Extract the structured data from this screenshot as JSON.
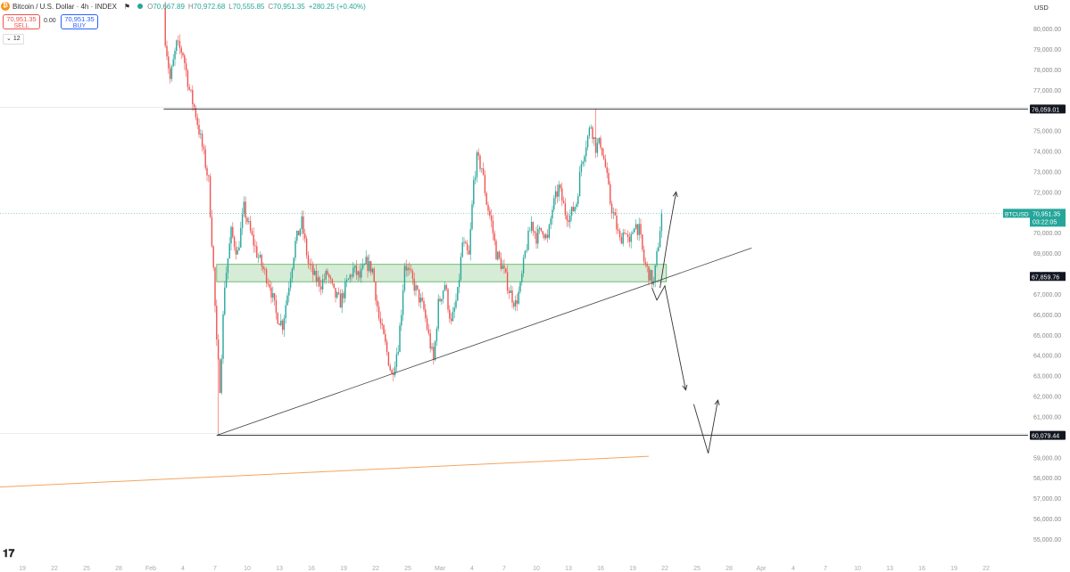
{
  "header": {
    "symbol": "Bitcoin / U.S. Dollar · 4h · INDEX",
    "open": "70,667.89",
    "high": "70,972.68",
    "low": "70,555.85",
    "close": "70,951.35",
    "change": "+280.25 (+0.40%)",
    "open_key": "O",
    "high_key": "H",
    "low_key": "L",
    "close_key": "C"
  },
  "trade": {
    "sell_price": "70,951.35",
    "sell_label": "SELL",
    "buy_price": "70,951.35",
    "buy_label": "BUY",
    "spread": "0.00",
    "indicator_count": "12"
  },
  "currency": "USD",
  "colors": {
    "up": "#26a69a",
    "down": "#ef5350",
    "zone_fill": "#c8e6c9",
    "zone_border": "#4caf50",
    "ma_line": "#f4a460",
    "price_tag": "#26a69a"
  },
  "chart_data": {
    "type": "candlestick",
    "ylim": [
      54000,
      81000
    ],
    "y_ticks": [
      55000,
      56000,
      57000,
      58000,
      59000,
      60000,
      61000,
      62000,
      63000,
      64000,
      65000,
      66000,
      67000,
      68000,
      69000,
      70000,
      71000,
      72000,
      73000,
      74000,
      75000,
      76000,
      77000,
      78000,
      79000,
      80000
    ],
    "y_tick_labels": [
      "55,000.00",
      "56,000.00",
      "57,000.00",
      "58,000.00",
      "59,000.00",
      "60,000.00",
      "61,000.00",
      "62,000.00",
      "63,000.00",
      "64,000.00",
      "65,000.00",
      "66,000.00",
      "67,000.00",
      "68,000.00",
      "69,000.00",
      "70,000.00",
      "71,000.00",
      "72,000.00",
      "73,000.00",
      "74,000.00",
      "75,000.00",
      "76,000.00",
      "77,000.00",
      "78,000.00",
      "79,000.00",
      "80,000.00"
    ],
    "x_ticks": [
      {
        "bar": 0,
        "label": "19"
      },
      {
        "bar": 20,
        "label": "22"
      },
      {
        "bar": 40,
        "label": "25"
      },
      {
        "bar": 60,
        "label": "28"
      },
      {
        "bar": 80,
        "label": "Feb"
      },
      {
        "bar": 100,
        "label": "4"
      },
      {
        "bar": 120,
        "label": "7"
      },
      {
        "bar": 140,
        "label": "10"
      },
      {
        "bar": 160,
        "label": "13"
      },
      {
        "bar": 180,
        "label": "16"
      },
      {
        "bar": 200,
        "label": "19"
      },
      {
        "bar": 220,
        "label": "22"
      },
      {
        "bar": 240,
        "label": "25"
      },
      {
        "bar": 260,
        "label": "Mar"
      },
      {
        "bar": 280,
        "label": "4"
      },
      {
        "bar": 300,
        "label": "7"
      },
      {
        "bar": 320,
        "label": "10"
      },
      {
        "bar": 340,
        "label": "13"
      },
      {
        "bar": 360,
        "label": "16"
      },
      {
        "bar": 380,
        "label": "19"
      },
      {
        "bar": 400,
        "label": "22"
      },
      {
        "bar": 420,
        "label": "25"
      },
      {
        "bar": 440,
        "label": "28"
      },
      {
        "bar": 460,
        "label": "Apr"
      },
      {
        "bar": 480,
        "label": "4"
      },
      {
        "bar": 500,
        "label": "7"
      },
      {
        "bar": 520,
        "label": "10"
      },
      {
        "bar": 540,
        "label": "13"
      },
      {
        "bar": 560,
        "label": "16"
      },
      {
        "bar": 580,
        "label": "19"
      },
      {
        "bar": 600,
        "label": "22"
      }
    ],
    "price_anchors": [
      [
        88,
        81000
      ],
      [
        89,
        79500
      ],
      [
        92,
        77500
      ],
      [
        96,
        79200
      ],
      [
        100,
        78800
      ],
      [
        104,
        77000
      ],
      [
        108,
        75800
      ],
      [
        112,
        74200
      ],
      [
        116,
        72500
      ],
      [
        119,
        68200
      ],
      [
        121,
        64500
      ],
      [
        123,
        62500
      ],
      [
        126,
        67500
      ],
      [
        130,
        70000
      ],
      [
        134,
        69000
      ],
      [
        138,
        71200
      ],
      [
        142,
        70000
      ],
      [
        146,
        69000
      ],
      [
        150,
        68200
      ],
      [
        154,
        67500
      ],
      [
        158,
        66000
      ],
      [
        162,
        65500
      ],
      [
        166,
        67500
      ],
      [
        170,
        69500
      ],
      [
        174,
        70500
      ],
      [
        178,
        68500
      ],
      [
        182,
        67800
      ],
      [
        186,
        67500
      ],
      [
        190,
        68000
      ],
      [
        194,
        67000
      ],
      [
        198,
        66600
      ],
      [
        202,
        67500
      ],
      [
        206,
        68200
      ],
      [
        210,
        67800
      ],
      [
        214,
        68500
      ],
      [
        218,
        68200
      ],
      [
        222,
        65800
      ],
      [
        226,
        64500
      ],
      [
        230,
        63000
      ],
      [
        234,
        64500
      ],
      [
        236,
        66200
      ],
      [
        238,
        68500
      ],
      [
        242,
        67800
      ],
      [
        246,
        67000
      ],
      [
        250,
        66200
      ],
      [
        254,
        64500
      ],
      [
        256,
        63700
      ],
      [
        259,
        66500
      ],
      [
        263,
        67500
      ],
      [
        267,
        65500
      ],
      [
        271,
        67000
      ],
      [
        274,
        69500
      ],
      [
        278,
        68800
      ],
      [
        281,
        72500
      ],
      [
        283,
        73600
      ],
      [
        286,
        73200
      ],
      [
        289,
        71500
      ],
      [
        292,
        70500
      ],
      [
        295,
        69000
      ],
      [
        299,
        68300
      ],
      [
        303,
        67200
      ],
      [
        307,
        66500
      ],
      [
        310,
        67300
      ],
      [
        313,
        69000
      ],
      [
        317,
        70500
      ],
      [
        320,
        69800
      ],
      [
        324,
        70200
      ],
      [
        327,
        69600
      ],
      [
        330,
        71200
      ],
      [
        334,
        72200
      ],
      [
        338,
        71000
      ],
      [
        341,
        70800
      ],
      [
        345,
        71500
      ],
      [
        348,
        73400
      ],
      [
        351,
        74400
      ],
      [
        354,
        75300
      ],
      [
        357,
        74200
      ],
      [
        360,
        74400
      ],
      [
        363,
        73200
      ],
      [
        366,
        71500
      ],
      [
        369,
        70600
      ],
      [
        372,
        69600
      ],
      [
        375,
        70200
      ],
      [
        378,
        69300
      ],
      [
        381,
        70500
      ],
      [
        384,
        70100
      ],
      [
        387,
        68600
      ],
      [
        390,
        68000
      ],
      [
        393,
        67500
      ],
      [
        396,
        69500
      ],
      [
        398,
        70951
      ]
    ],
    "wick_extremes": [
      {
        "bar": 122,
        "low": 60079.44
      },
      {
        "bar": 357,
        "high": 76059.01
      }
    ],
    "levels": [
      {
        "price": 76059.01,
        "label": "76,059.01"
      },
      {
        "price": 60079.44,
        "label": "60,079.44"
      }
    ],
    "current_price": {
      "price": 70951.35,
      "label": "70,951.35",
      "symbol": "BTCUSD",
      "countdown": "03:22:05"
    },
    "zone": {
      "bar_start": 121,
      "bar_end": 401,
      "low": 67600,
      "high": 68450,
      "label": "67,859.76",
      "label_price": 67859.76
    },
    "trendline": {
      "bar1": 121,
      "price1": 60079.44,
      "bar2": 454,
      "price2": 69250
    },
    "moving_average": {
      "bar1": 0,
      "price1": 57600,
      "bar2": 390,
      "price2": 59050
    },
    "scenario_paths": [
      {
        "points": [
          [
            397,
            67300
          ],
          [
            402,
            69800
          ],
          [
            407,
            72000
          ]
        ],
        "arrow": true
      },
      {
        "points": [
          [
            392,
            67300
          ],
          [
            395,
            66700
          ],
          [
            400,
            67400
          ],
          [
            413,
            62300
          ]
        ],
        "arrow": true
      },
      {
        "points": [
          [
            418,
            61600
          ],
          [
            427,
            59200
          ],
          [
            433,
            61800
          ]
        ],
        "arrow": true
      }
    ]
  }
}
